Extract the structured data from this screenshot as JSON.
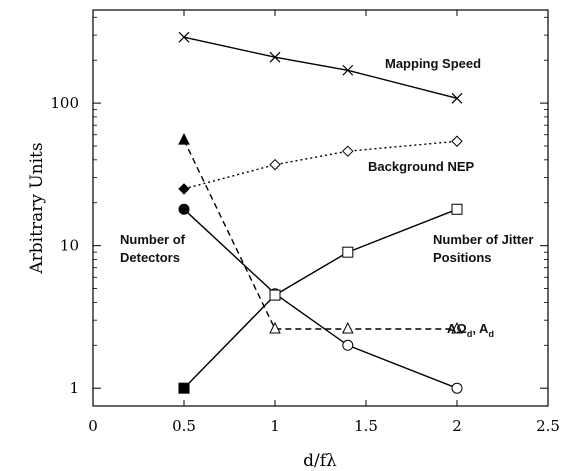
{
  "chart_data": {
    "type": "line",
    "xlabel": "d/fλ",
    "ylabel": "Arbitrary Units",
    "xlim": [
      0,
      2.5
    ],
    "ylim": [
      0.75,
      450
    ],
    "yscale": "log",
    "grid": false,
    "x_ticks": [
      "0",
      "0.5",
      "1",
      "1.5",
      "2",
      "2.5"
    ],
    "y_ticks": [
      "1",
      "10",
      "100"
    ],
    "series": [
      {
        "name": "Mapping Speed",
        "marker": "x",
        "style": "solid",
        "x": [
          0.5,
          1,
          1.4,
          2
        ],
        "y": [
          290,
          210,
          170,
          108
        ]
      },
      {
        "name": "Background NEP",
        "marker": "diamond",
        "style": "dotted",
        "x": [
          0.5,
          1,
          1.4,
          2
        ],
        "y": [
          25,
          37,
          46,
          54
        ]
      },
      {
        "name": "Number of Detectors",
        "marker": "circle",
        "style": "solid",
        "x": [
          0.5,
          1,
          1.4,
          2
        ],
        "y": [
          18,
          4.6,
          2,
          1
        ]
      },
      {
        "name": "Number of Jitter Positions",
        "marker": "square",
        "style": "solid",
        "x": [
          0.5,
          1,
          1.4,
          2
        ],
        "y": [
          1,
          4.5,
          9,
          18
        ]
      },
      {
        "name": "AΩd, Ad",
        "marker": "triangle",
        "style": "dashed",
        "x": [
          0.5,
          1,
          1.4,
          2
        ],
        "y": [
          55,
          2.6,
          2.6,
          2.6
        ]
      }
    ],
    "annotations": {
      "mapping_speed": "Mapping Speed",
      "background_nep": "Background NEP",
      "detectors_line1": "Number of",
      "detectors_line2": "Detectors",
      "jitter_line1": "Number of Jitter",
      "jitter_line2": "Positions",
      "aomega": "AΩ",
      "aomega_sub": "d",
      "a_sep": ", A",
      "a_sub": "d"
    }
  }
}
